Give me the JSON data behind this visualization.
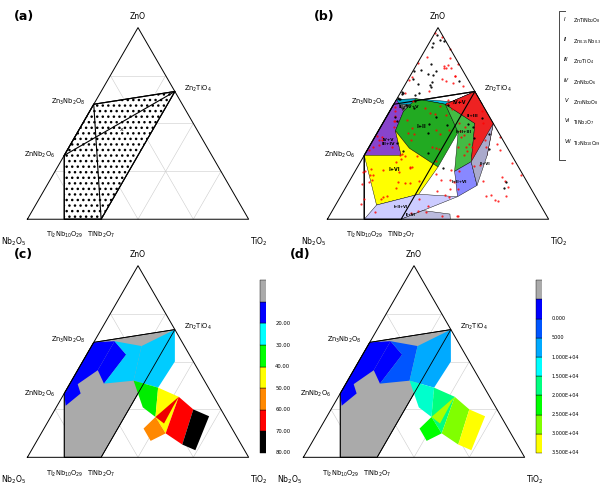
{
  "fig_width": 6.0,
  "fig_height": 4.96,
  "bg_color": "#ffffff",
  "panels": [
    "(a)",
    "(b)",
    "(c)",
    "(d)"
  ],
  "colorbar_c_colors": [
    "#aaaaaa",
    "#0000ff",
    "#00ffff",
    "#00ff00",
    "#ffff00",
    "#ff8800",
    "#ff0000",
    "#000000"
  ],
  "colorbar_c_labels": [
    "",
    "20.00",
    "30.00",
    "40.00",
    "50.00",
    "60.00",
    "70.00",
    "80.00"
  ],
  "colorbar_d_colors": [
    "#aaaaaa",
    "#0000ff",
    "#0055ff",
    "#00aaff",
    "#00ffff",
    "#00ff80",
    "#00ff00",
    "#80ff00",
    "#ffff00"
  ],
  "colorbar_d_labels": [
    "",
    "0.000",
    "5000",
    "1.000E+04",
    "1.500E+04",
    "2.000E+04",
    "2.500E+04",
    "3.000E+04",
    "3.500E+04"
  ],
  "legend_b_roman": [
    "I",
    "II",
    "III",
    "IV",
    "V",
    "VI",
    "VII"
  ],
  "legend_b_labels": [
    "ZnTiNb$_2$O$_8$",
    "Zn$_{0.15}$Nb$_{0.3}$Ti$_{0.55}$O$_2$",
    "Zn$_2$TiO$_4$",
    "ZnNb$_2$O$_6$",
    "Zn$_3$Nb$_2$O$_8$",
    "TiNb$_2$O$_7$",
    "Ti$_2$Nb$_{10}$O$_{29}$"
  ]
}
